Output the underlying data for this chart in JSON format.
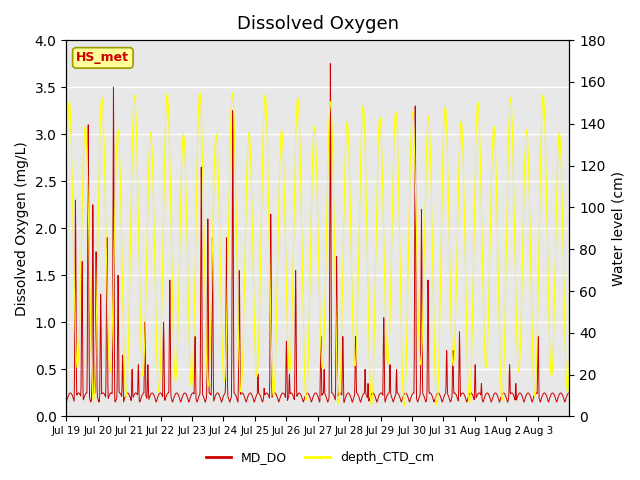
{
  "title": "Dissolved Oxygen",
  "ylabel_left": "Dissolved Oxygen (mg/L)",
  "ylabel_right": "Water level (cm)",
  "ylim_left": [
    0.0,
    4.0
  ],
  "ylim_right": [
    0,
    180
  ],
  "yticks_left": [
    0.0,
    0.5,
    1.0,
    1.5,
    2.0,
    2.5,
    3.0,
    3.5,
    4.0
  ],
  "yticks_right": [
    0,
    20,
    40,
    60,
    80,
    100,
    120,
    140,
    160,
    180
  ],
  "xtick_labels": [
    "Jul 19",
    "Jul 20",
    "Jul 21",
    "Jul 22",
    "Jul 23",
    "Jul 24",
    "Jul 25",
    "Jul 26",
    "Jul 27",
    "Jul 28",
    "Jul 29",
    "Jul 30",
    "Jul 31",
    "Aug 1",
    "Aug 2",
    "Aug 3"
  ],
  "color_do": "#cc0000",
  "color_depth": "#ffff00",
  "legend_do": "MD_DO",
  "legend_depth": "depth_CTD_cm",
  "annotation_text": "HS_met",
  "annotation_color": "#cc0000",
  "annotation_bg": "#ffff99",
  "annotation_border": "#999900",
  "bg_color": "#e8e8e8",
  "grid_color": "#ffffff",
  "title_fontsize": 13,
  "label_fontsize": 10
}
